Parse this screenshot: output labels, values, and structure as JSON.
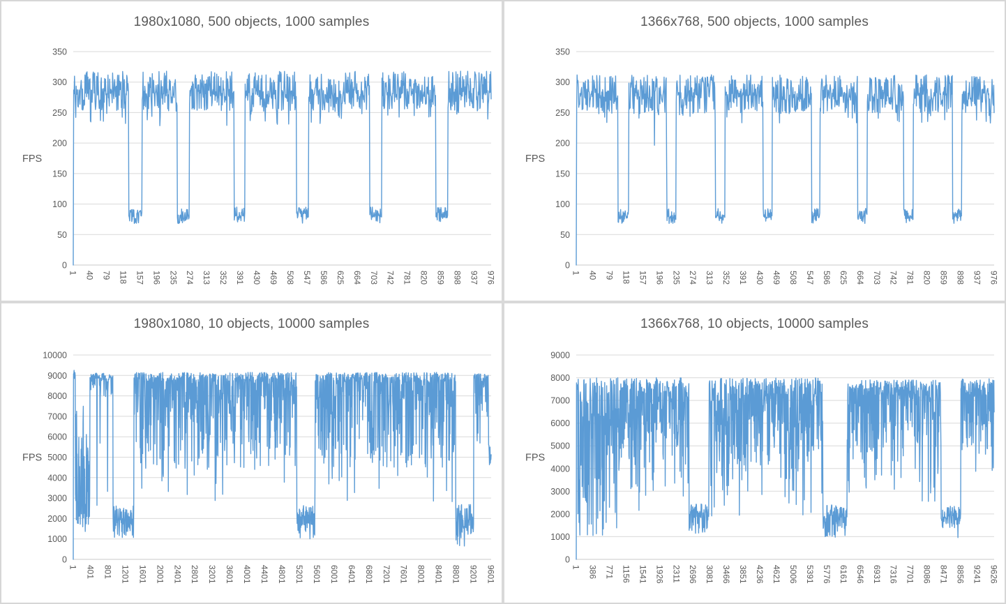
{
  "style": {
    "line_color": "#5b9bd5",
    "grid_color": "#d9d9d9",
    "axis_line_color": "#c9c9c9",
    "text_color": "#595959",
    "panel_background": "#ffffff",
    "divider_color": "#d9d9d9"
  },
  "chart_data": [
    {
      "type": "line",
      "title": "1980x1080, 500 objects, 1000 samples",
      "ylabel": "FPS",
      "xlabel": "",
      "legend": "none",
      "grid": "horizontal",
      "ylim": [
        0,
        350
      ],
      "y_ticks": [
        0,
        50,
        100,
        150,
        200,
        250,
        300,
        350
      ],
      "x_tick_labels": [
        "1",
        "40",
        "79",
        "118",
        "157",
        "196",
        "235",
        "274",
        "313",
        "352",
        "391",
        "430",
        "469",
        "508",
        "547",
        "586",
        "625",
        "664",
        "703",
        "742",
        "781",
        "820",
        "859",
        "898",
        "937",
        "976"
      ],
      "points": 1000,
      "start_zero": true,
      "bands": {
        "high": [
          [
            0.5,
            276,
            318
          ],
          [
            0.46,
            252,
            288
          ],
          [
            0.04,
            228,
            254
          ]
        ],
        "dip": [
          [
            0.55,
            78,
            95
          ],
          [
            0.45,
            68,
            82
          ]
        ]
      },
      "pattern_segments": [
        {
          "f0": 0.0,
          "f1": 0.133,
          "band": "high"
        },
        {
          "f0": 0.133,
          "f1": 0.165,
          "band": "dip"
        },
        {
          "f0": 0.165,
          "f1": 0.249,
          "band": "high"
        },
        {
          "f0": 0.249,
          "f1": 0.278,
          "band": "dip"
        },
        {
          "f0": 0.278,
          "f1": 0.385,
          "band": "high"
        },
        {
          "f0": 0.385,
          "f1": 0.411,
          "band": "dip"
        },
        {
          "f0": 0.411,
          "f1": 0.534,
          "band": "high"
        },
        {
          "f0": 0.534,
          "f1": 0.563,
          "band": "dip"
        },
        {
          "f0": 0.563,
          "f1": 0.709,
          "band": "high"
        },
        {
          "f0": 0.709,
          "f1": 0.738,
          "band": "dip"
        },
        {
          "f0": 0.738,
          "f1": 0.867,
          "band": "high"
        },
        {
          "f0": 0.867,
          "f1": 0.896,
          "band": "dip"
        },
        {
          "f0": 0.896,
          "f1": 1.001,
          "band": "high"
        }
      ]
    },
    {
      "type": "line",
      "title": "1366x768, 500 objects, 1000 samples",
      "ylabel": "FPS",
      "xlabel": "",
      "legend": "none",
      "grid": "horizontal",
      "ylim": [
        0,
        350
      ],
      "y_ticks": [
        0,
        50,
        100,
        150,
        200,
        250,
        300,
        350
      ],
      "x_tick_labels": [
        "1",
        "40",
        "79",
        "118",
        "157",
        "196",
        "235",
        "274",
        "313",
        "352",
        "391",
        "430",
        "469",
        "508",
        "547",
        "586",
        "625",
        "664",
        "703",
        "742",
        "781",
        "820",
        "859",
        "898",
        "937",
        "976"
      ],
      "points": 1000,
      "start_zero": true,
      "bands": {
        "high": [
          [
            0.5,
            272,
            312
          ],
          [
            0.46,
            248,
            284
          ],
          [
            0.04,
            232,
            252
          ]
        ],
        "high2": [
          [
            0.49,
            272,
            312
          ],
          [
            0.45,
            248,
            284
          ],
          [
            0.04,
            232,
            252
          ],
          [
            0.02,
            168,
            210
          ]
        ],
        "dip": [
          [
            0.55,
            76,
            93
          ],
          [
            0.45,
            68,
            82
          ]
        ]
      },
      "pattern_segments": [
        {
          "f0": 0.0,
          "f1": 0.1,
          "band": "high"
        },
        {
          "f0": 0.1,
          "f1": 0.126,
          "band": "dip"
        },
        {
          "f0": 0.126,
          "f1": 0.217,
          "band": "high2"
        },
        {
          "f0": 0.217,
          "f1": 0.239,
          "band": "dip"
        },
        {
          "f0": 0.239,
          "f1": 0.333,
          "band": "high"
        },
        {
          "f0": 0.333,
          "f1": 0.356,
          "band": "dip"
        },
        {
          "f0": 0.356,
          "f1": 0.447,
          "band": "high"
        },
        {
          "f0": 0.447,
          "f1": 0.469,
          "band": "dip"
        },
        {
          "f0": 0.469,
          "f1": 0.563,
          "band": "high"
        },
        {
          "f0": 0.563,
          "f1": 0.583,
          "band": "dip"
        },
        {
          "f0": 0.583,
          "f1": 0.673,
          "band": "high"
        },
        {
          "f0": 0.673,
          "f1": 0.696,
          "band": "dip"
        },
        {
          "f0": 0.696,
          "f1": 0.783,
          "band": "high"
        },
        {
          "f0": 0.783,
          "f1": 0.806,
          "band": "dip"
        },
        {
          "f0": 0.806,
          "f1": 0.9,
          "band": "high"
        },
        {
          "f0": 0.9,
          "f1": 0.922,
          "band": "dip"
        },
        {
          "f0": 0.922,
          "f1": 1.001,
          "band": "high"
        }
      ]
    },
    {
      "type": "line",
      "title": "1980x1080, 10 objects, 10000 samples",
      "ylabel": "FPS",
      "xlabel": "",
      "legend": "none",
      "grid": "horizontal",
      "ylim": [
        0,
        10000
      ],
      "y_ticks": [
        0,
        1000,
        2000,
        3000,
        4000,
        5000,
        6000,
        7000,
        8000,
        9000,
        10000
      ],
      "x_tick_labels": [
        "1",
        "401",
        "801",
        "1201",
        "1601",
        "2001",
        "2401",
        "2801",
        "3201",
        "3601",
        "4001",
        "4401",
        "4801",
        "5201",
        "5601",
        "6001",
        "6401",
        "6801",
        "7201",
        "7601",
        "8001",
        "8401",
        "8801",
        "9201",
        "9601"
      ],
      "points": 1500,
      "start_zero": true,
      "bands": {
        "spike": [
          [
            1.0,
            8800,
            9250
          ]
        ],
        "warm": [
          [
            0.42,
            4300,
            5600
          ],
          [
            0.28,
            2000,
            3400
          ],
          [
            0.17,
            5600,
            7800
          ],
          [
            0.13,
            1300,
            2300
          ]
        ],
        "hiA": [
          [
            0.72,
            8750,
            9120
          ],
          [
            0.14,
            7800,
            8750
          ],
          [
            0.1,
            4700,
            5800
          ],
          [
            0.04,
            2000,
            4700
          ]
        ],
        "low": [
          [
            0.58,
            1900,
            2640
          ],
          [
            0.3,
            1350,
            1950
          ],
          [
            0.12,
            1000,
            1420
          ]
        ],
        "hi": [
          [
            0.5,
            8650,
            9150
          ],
          [
            0.24,
            7200,
            8650
          ],
          [
            0.16,
            5300,
            7200
          ],
          [
            0.07,
            4400,
            5400
          ],
          [
            0.03,
            2800,
            4400
          ]
        ],
        "lowEnd": [
          [
            0.52,
            1800,
            2700
          ],
          [
            0.3,
            1200,
            1850
          ],
          [
            0.14,
            750,
            1250
          ],
          [
            0.04,
            580,
            800
          ]
        ],
        "hiEnd": [
          [
            0.58,
            8650,
            9100
          ],
          [
            0.26,
            7300,
            8650
          ],
          [
            0.16,
            5400,
            7300
          ]
        ],
        "tail": [
          [
            1.0,
            4350,
            5500
          ]
        ]
      },
      "pattern_segments": [
        {
          "f0": 0.0,
          "f1": 0.005,
          "band": "spike"
        },
        {
          "f0": 0.005,
          "f1": 0.04,
          "band": "warm"
        },
        {
          "f0": 0.04,
          "f1": 0.095,
          "band": "hiA"
        },
        {
          "f0": 0.095,
          "f1": 0.145,
          "band": "low"
        },
        {
          "f0": 0.145,
          "f1": 0.535,
          "band": "hi"
        },
        {
          "f0": 0.535,
          "f1": 0.578,
          "band": "low"
        },
        {
          "f0": 0.578,
          "f1": 0.915,
          "band": "hi"
        },
        {
          "f0": 0.915,
          "f1": 0.958,
          "band": "lowEnd"
        },
        {
          "f0": 0.958,
          "f1": 0.995,
          "band": "hiEnd"
        },
        {
          "f0": 0.995,
          "f1": 1.001,
          "band": "tail"
        }
      ]
    },
    {
      "type": "line",
      "title": "1366x768, 10 objects, 10000 samples",
      "ylabel": "FPS",
      "xlabel": "",
      "legend": "none",
      "grid": "horizontal",
      "ylim": [
        0,
        9000
      ],
      "y_ticks": [
        0,
        1000,
        2000,
        3000,
        4000,
        5000,
        6000,
        7000,
        8000,
        9000
      ],
      "x_tick_labels": [
        "1",
        "386",
        "771",
        "1156",
        "1541",
        "1926",
        "2311",
        "2696",
        "3081",
        "3466",
        "3851",
        "4236",
        "4621",
        "5006",
        "5391",
        "5776",
        "6161",
        "6546",
        "6931",
        "7316",
        "7701",
        "8086",
        "8471",
        "8856",
        "9241",
        "9626"
      ],
      "points": 1500,
      "start_zero": true,
      "bands": {
        "start": [
          [
            1.0,
            7400,
            7800
          ]
        ],
        "warm": [
          [
            0.32,
            7100,
            8000
          ],
          [
            0.28,
            5200,
            7100
          ],
          [
            0.22,
            3200,
            5200
          ],
          [
            0.12,
            1800,
            3200
          ],
          [
            0.06,
            1000,
            1800
          ]
        ],
        "hi1": [
          [
            0.45,
            7300,
            8000
          ],
          [
            0.29,
            5800,
            7300
          ],
          [
            0.18,
            4200,
            5800
          ],
          [
            0.06,
            3000,
            4200
          ],
          [
            0.02,
            1800,
            3000
          ]
        ],
        "low1": [
          [
            0.58,
            1800,
            2450
          ],
          [
            0.3,
            1380,
            1900
          ],
          [
            0.12,
            1130,
            1480
          ]
        ],
        "hi2": [
          [
            0.44,
            7200,
            8000
          ],
          [
            0.28,
            5800,
            7300
          ],
          [
            0.18,
            4200,
            5800
          ],
          [
            0.07,
            2800,
            4200
          ],
          [
            0.03,
            1700,
            2800
          ]
        ],
        "low2": [
          [
            0.54,
            1800,
            2400
          ],
          [
            0.3,
            1300,
            1900
          ],
          [
            0.13,
            1000,
            1400
          ],
          [
            0.03,
            850,
            1060
          ]
        ],
        "hi3": [
          [
            0.49,
            7200,
            7900
          ],
          [
            0.28,
            5800,
            7300
          ],
          [
            0.16,
            4300,
            5800
          ],
          [
            0.05,
            3000,
            4400
          ],
          [
            0.02,
            2500,
            3000
          ]
        ],
        "low3": [
          [
            0.58,
            1750,
            2400
          ],
          [
            0.3,
            1300,
            1860
          ],
          [
            0.12,
            950,
            1360
          ]
        ],
        "hiEnd": [
          [
            0.45,
            7200,
            7950
          ],
          [
            0.3,
            5900,
            7300
          ],
          [
            0.2,
            4600,
            5900
          ],
          [
            0.05,
            3500,
            4700
          ]
        ]
      },
      "pattern_segments": [
        {
          "f0": 0.0,
          "f1": 0.004,
          "band": "start"
        },
        {
          "f0": 0.004,
          "f1": 0.1,
          "band": "warm"
        },
        {
          "f0": 0.1,
          "f1": 0.27,
          "band": "hi1"
        },
        {
          "f0": 0.27,
          "f1": 0.317,
          "band": "low1"
        },
        {
          "f0": 0.317,
          "f1": 0.59,
          "band": "hi2"
        },
        {
          "f0": 0.59,
          "f1": 0.648,
          "band": "low2"
        },
        {
          "f0": 0.648,
          "f1": 0.873,
          "band": "hi3"
        },
        {
          "f0": 0.873,
          "f1": 0.92,
          "band": "low3"
        },
        {
          "f0": 0.92,
          "f1": 1.001,
          "band": "hiEnd"
        }
      ]
    }
  ]
}
